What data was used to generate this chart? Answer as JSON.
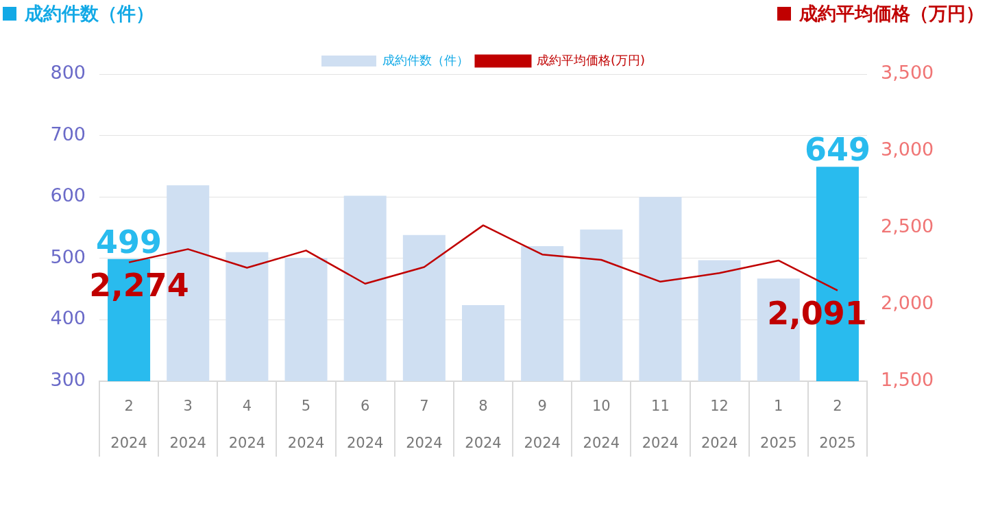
{
  "chart_data": {
    "type": "bar",
    "ylabel": "成約件数（件）",
    "y2label": "成約平均価格（万円）",
    "categories": [
      "2\n2024",
      "3\n2024",
      "4\n2024",
      "5\n2024",
      "6\n2024",
      "7\n2024",
      "8\n2024",
      "9\n2024",
      "10\n2024",
      "11\n2024",
      "12\n2024",
      "1\n2025",
      "2\n2025"
    ],
    "series": [
      {
        "name": "成約件数（件）",
        "color": "#cfdff2",
        "colors": [
          "#29bbee",
          "#cfdff2",
          "#cfdff2",
          "#cfdff2",
          "#cfdff2",
          "#cfdff2",
          "#cfdff2",
          "#cfdff2",
          "#cfdff2",
          "#cfdff2",
          "#cfdff2",
          "#cfdff2",
          "#29bbee"
        ],
        "values": [
          499,
          619,
          510,
          501,
          602,
          538,
          424,
          520,
          547,
          600,
          497,
          467,
          649
        ],
        "value_labels": [
          "499",
          null,
          null,
          null,
          null,
          null,
          null,
          null,
          null,
          null,
          null,
          null,
          "649"
        ]
      },
      {
        "name": "成約平均価格(万円)",
        "type": "line",
        "axis": "y2",
        "color": "#c00000",
        "marker": "none",
        "values": [
          2274,
          2360,
          2239,
          2351,
          2135,
          2243,
          2515,
          2325,
          2290,
          2148,
          2204,
          2286,
          2091
        ],
        "value_labels": [
          "2,274",
          null,
          null,
          null,
          null,
          null,
          null,
          null,
          null,
          null,
          null,
          null,
          "2,091"
        ]
      }
    ],
    "ylim": [
      300,
      800
    ],
    "yticks": [
      300,
      400,
      500,
      600,
      700,
      800
    ],
    "y2lim": [
      1500,
      3500
    ],
    "y2ticks": [
      {
        "value": 1500,
        "label": "1,500"
      },
      {
        "value": 2000,
        "label": "2,000"
      },
      {
        "value": 2500,
        "label": "2,500"
      },
      {
        "value": 3000,
        "label": "3,000"
      },
      {
        "value": 3500,
        "label": "3,500"
      }
    ],
    "grid": "y",
    "legend": "top"
  }
}
